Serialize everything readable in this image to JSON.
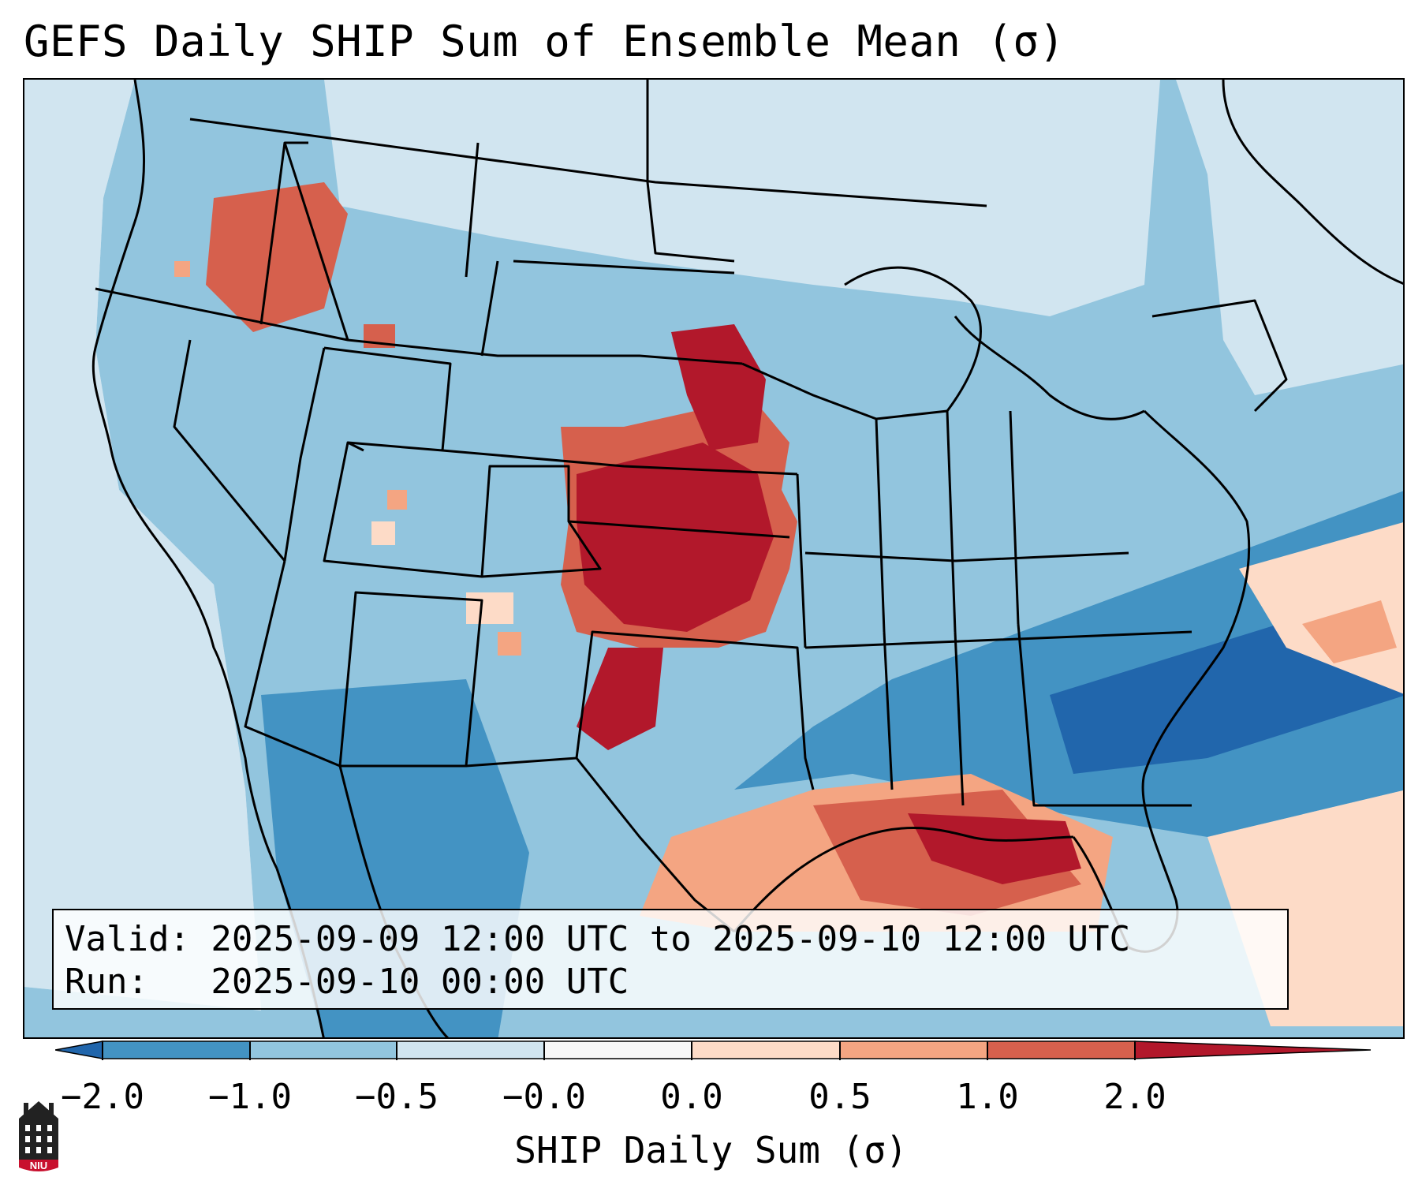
{
  "title": "GEFS Daily SHIP Sum of Ensemble Mean (σ)",
  "info": {
    "valid_line": "Valid: 2025-09-09 12:00 UTC to 2025-09-10 12:00 UTC",
    "run_line": "Run:   2025-09-10 00:00 UTC"
  },
  "colorbar": {
    "label": "SHIP Daily Sum (σ)",
    "ticks": [
      "−2.0",
      "−1.0",
      "−0.5",
      "−0.0",
      "0.0",
      "0.5",
      "1.0",
      "2.0"
    ],
    "colors": [
      "#2166ac",
      "#4393c3",
      "#92c5de",
      "#d1e5f0",
      "#fddbc7",
      "#f4a582",
      "#d6604d",
      "#b2182b"
    ],
    "extend": "both"
  },
  "map": {
    "background_color": "#d1e5f0",
    "ocean_bg_color": "#d1e5f0",
    "projection": "Lambert Conformal",
    "region": "Contiguous United States"
  },
  "logo": {
    "text": "NIU",
    "name": "niu-logo"
  }
}
